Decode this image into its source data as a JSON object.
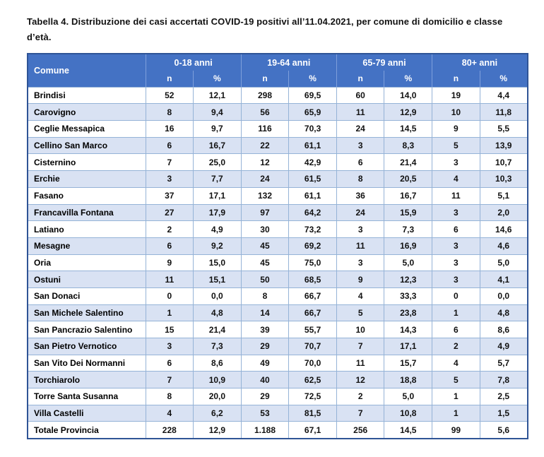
{
  "caption": "Tabella 4. Distribuzione dei casi accertati COVID-19 positivi all’11.04.2021, per comune di domicilio e classe d’età.",
  "colors": {
    "header_bg": "#4472C4",
    "stripe_bg": "#D9E2F3",
    "inner_border": "#95B3D7",
    "outer_border": "#2F5496",
    "header_text": "#FFFFFF",
    "body_text": "#111111"
  },
  "chart_data": {
    "type": "table",
    "title": "Tabella 4. Distribuzione dei casi accertati COVID-19 positivi all’11.04.2021, per comune di domicilio e classe d’età.",
    "corner_header": "Comune",
    "group_headers": [
      "0-18 anni",
      "19-64 anni",
      "65-79 anni",
      "80+ anni"
    ],
    "sub_headers": [
      "n",
      "%"
    ],
    "rows": [
      {
        "comune": "Brindisi",
        "values": [
          "52",
          "12,1",
          "298",
          "69,5",
          "60",
          "14,0",
          "19",
          "4,4"
        ]
      },
      {
        "comune": "Carovigno",
        "values": [
          "8",
          "9,4",
          "56",
          "65,9",
          "11",
          "12,9",
          "10",
          "11,8"
        ]
      },
      {
        "comune": "Ceglie Messapica",
        "values": [
          "16",
          "9,7",
          "116",
          "70,3",
          "24",
          "14,5",
          "9",
          "5,5"
        ]
      },
      {
        "comune": "Cellino San Marco",
        "values": [
          "6",
          "16,7",
          "22",
          "61,1",
          "3",
          "8,3",
          "5",
          "13,9"
        ]
      },
      {
        "comune": "Cisternino",
        "values": [
          "7",
          "25,0",
          "12",
          "42,9",
          "6",
          "21,4",
          "3",
          "10,7"
        ]
      },
      {
        "comune": "Erchie",
        "values": [
          "3",
          "7,7",
          "24",
          "61,5",
          "8",
          "20,5",
          "4",
          "10,3"
        ]
      },
      {
        "comune": "Fasano",
        "values": [
          "37",
          "17,1",
          "132",
          "61,1",
          "36",
          "16,7",
          "11",
          "5,1"
        ]
      },
      {
        "comune": "Francavilla Fontana",
        "values": [
          "27",
          "17,9",
          "97",
          "64,2",
          "24",
          "15,9",
          "3",
          "2,0"
        ]
      },
      {
        "comune": "Latiano",
        "values": [
          "2",
          "4,9",
          "30",
          "73,2",
          "3",
          "7,3",
          "6",
          "14,6"
        ]
      },
      {
        "comune": "Mesagne",
        "values": [
          "6",
          "9,2",
          "45",
          "69,2",
          "11",
          "16,9",
          "3",
          "4,6"
        ]
      },
      {
        "comune": "Oria",
        "values": [
          "9",
          "15,0",
          "45",
          "75,0",
          "3",
          "5,0",
          "3",
          "5,0"
        ]
      },
      {
        "comune": "Ostuni",
        "values": [
          "11",
          "15,1",
          "50",
          "68,5",
          "9",
          "12,3",
          "3",
          "4,1"
        ]
      },
      {
        "comune": "San Donaci",
        "values": [
          "0",
          "0,0",
          "8",
          "66,7",
          "4",
          "33,3",
          "0",
          "0,0"
        ]
      },
      {
        "comune": "San Michele Salentino",
        "values": [
          "1",
          "4,8",
          "14",
          "66,7",
          "5",
          "23,8",
          "1",
          "4,8"
        ]
      },
      {
        "comune": "San Pancrazio Salentino",
        "values": [
          "15",
          "21,4",
          "39",
          "55,7",
          "10",
          "14,3",
          "6",
          "8,6"
        ]
      },
      {
        "comune": "San Pietro Vernotico",
        "values": [
          "3",
          "7,3",
          "29",
          "70,7",
          "7",
          "17,1",
          "2",
          "4,9"
        ]
      },
      {
        "comune": "San Vito Dei Normanni",
        "values": [
          "6",
          "8,6",
          "49",
          "70,0",
          "11",
          "15,7",
          "4",
          "5,7"
        ]
      },
      {
        "comune": "Torchiarolo",
        "values": [
          "7",
          "10,9",
          "40",
          "62,5",
          "12",
          "18,8",
          "5",
          "7,8"
        ]
      },
      {
        "comune": "Torre Santa Susanna",
        "values": [
          "8",
          "20,0",
          "29",
          "72,5",
          "2",
          "5,0",
          "1",
          "2,5"
        ]
      },
      {
        "comune": "Villa Castelli",
        "values": [
          "4",
          "6,2",
          "53",
          "81,5",
          "7",
          "10,8",
          "1",
          "1,5"
        ]
      }
    ],
    "total_row": {
      "comune": "Totale Provincia",
      "values": [
        "228",
        "12,9",
        "1.188",
        "67,1",
        "256",
        "14,5",
        "99",
        "5,6"
      ]
    }
  }
}
